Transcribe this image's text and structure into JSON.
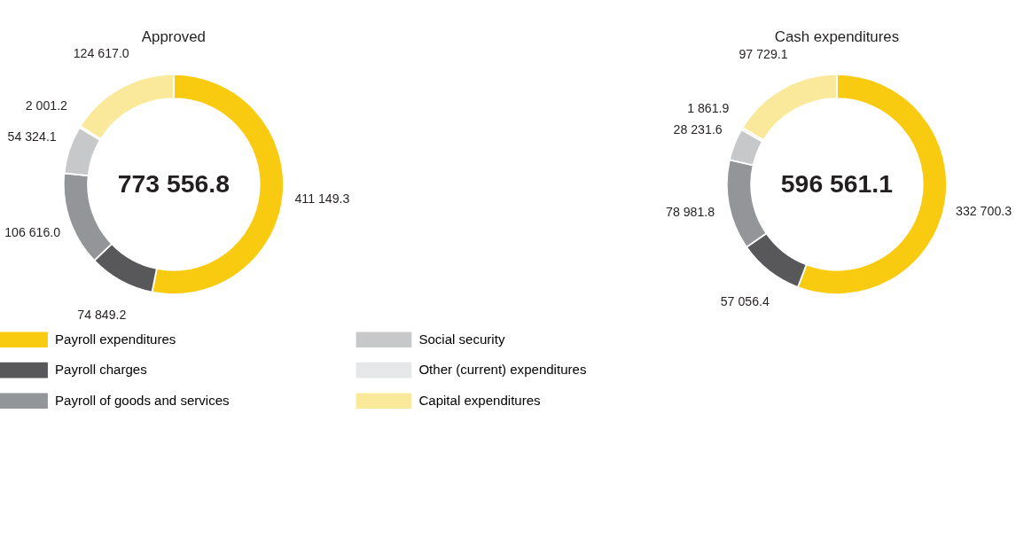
{
  "chart_data": [
    {
      "type": "donut",
      "title": "Approved",
      "categories": [
        "Payroll expenditures",
        "Payroll charges",
        "Payroll of goods and services",
        "Social security",
        "Other (current) expenditures",
        "Capital expenditures"
      ],
      "values": [
        411149.3,
        74849.2,
        106616.0,
        54324.1,
        2001.2,
        124617.0
      ],
      "value_labels": [
        "411 149.3",
        "74 849.2",
        "106 616.0",
        "54 324.1",
        "2 001.2",
        "124 617.0"
      ],
      "colors": [
        "#f9cb10",
        "#58585a",
        "#939598",
        "#c7c8ca",
        "#e6e7e8",
        "#fbe99b"
      ],
      "annotations": [
        "773 556.8"
      ],
      "legend": "bottom"
    },
    {
      "type": "donut",
      "title": "Cash expenditures",
      "categories": [
        null,
        null,
        null,
        null,
        null,
        null
      ],
      "values": [
        332700.3,
        57056.4,
        78981.8,
        28231.6,
        1861.9,
        97729.1
      ],
      "value_labels": [
        "332 700.3",
        "57 056.4",
        "78 981.8",
        "28 231.6",
        "1 861.9",
        "97 729.1"
      ],
      "colors": [
        "#f9cb10",
        "#58585a",
        "#939598",
        "#c7c8ca",
        "#e6e7e8",
        "#fbe99b"
      ],
      "annotations": [
        "596 561.1"
      ]
    }
  ]
}
